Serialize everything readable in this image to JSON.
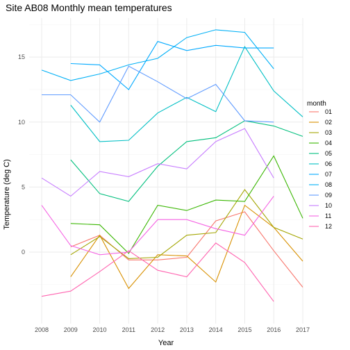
{
  "chart_data": {
    "type": "line",
    "title": "Site AB08 Monthly mean temperatures",
    "xlabel": "Year",
    "ylabel": "Temperature (deg C)",
    "xlim": [
      2008,
      2017
    ],
    "ylim": [
      -5.5,
      18
    ],
    "x_ticks": [
      2008,
      2009,
      2010,
      2011,
      2012,
      2013,
      2014,
      2015,
      2016,
      2017
    ],
    "y_ticks": [
      0,
      5,
      10,
      15
    ],
    "grid": true,
    "legend": {
      "title": "month",
      "position": "right"
    },
    "series": [
      {
        "name": "01",
        "color": "#F8766D",
        "x": [
          2009,
          2010,
          2011,
          2012,
          2013,
          2014,
          2015,
          2016,
          2017
        ],
        "y": [
          0.4,
          1.3,
          -0.6,
          -0.6,
          -0.4,
          2.4,
          3.1,
          0.1,
          -2.7
        ]
      },
      {
        "name": "02",
        "color": "#D89000",
        "x": [
          2009,
          2010,
          2011,
          2012,
          2013,
          2014,
          2015,
          2016,
          2017
        ],
        "y": [
          -1.9,
          1.3,
          -2.8,
          -0.2,
          -0.3,
          -2.3,
          3.6,
          1.9,
          -0.7
        ]
      },
      {
        "name": "03",
        "color": "#A3A500",
        "x": [
          2009,
          2010,
          2011,
          2012,
          2013,
          2014,
          2015,
          2016,
          2017
        ],
        "y": [
          -0.2,
          1.2,
          -0.5,
          -0.4,
          1.3,
          1.5,
          4.8,
          1.9,
          1.0
        ]
      },
      {
        "name": "04",
        "color": "#39B600",
        "x": [
          2009,
          2010,
          2011,
          2012,
          2013,
          2014,
          2015,
          2016,
          2017
        ],
        "y": [
          2.2,
          2.1,
          -0.1,
          3.6,
          3.2,
          4.0,
          3.9,
          7.4,
          2.6
        ]
      },
      {
        "name": "05",
        "color": "#00BF7D",
        "x": [
          2009,
          2010,
          2011,
          2012,
          2013,
          2014,
          2015,
          2016,
          2017
        ],
        "y": [
          7.1,
          4.5,
          3.9,
          6.6,
          8.5,
          8.8,
          10.1,
          9.7,
          8.9
        ]
      },
      {
        "name": "06",
        "color": "#00BFC4",
        "x": [
          2009,
          2010,
          2011,
          2012,
          2013,
          2014,
          2015,
          2016,
          2017
        ],
        "y": [
          11.3,
          8.5,
          8.6,
          10.7,
          11.9,
          10.8,
          15.8,
          12.4,
          10.4
        ]
      },
      {
        "name": "07",
        "color": "#00A9FF",
        "x": [
          2009,
          2010,
          2011,
          2012,
          2013,
          2014,
          2015,
          2016
        ],
        "y": [
          14.5,
          14.4,
          12.5,
          16.2,
          15.5,
          15.9,
          15.7,
          15.7
        ]
      },
      {
        "name": "08",
        "color": "#00B0F6",
        "x": [
          2008,
          2009,
          2010,
          2011,
          2012,
          2013,
          2014,
          2015,
          2016
        ],
        "y": [
          14.0,
          13.2,
          13.7,
          14.4,
          14.9,
          16.5,
          17.1,
          16.9,
          14.1
        ]
      },
      {
        "name": "09",
        "color": "#619CFF",
        "x": [
          2008,
          2009,
          2010,
          2011,
          2012,
          2013,
          2014,
          2015,
          2016
        ],
        "y": [
          12.1,
          12.1,
          10.0,
          14.3,
          13.1,
          11.8,
          12.9,
          10.1,
          10.0
        ]
      },
      {
        "name": "10",
        "color": "#C77CFF",
        "x": [
          2008,
          2009,
          2010,
          2011,
          2012,
          2013,
          2014,
          2015,
          2016
        ],
        "y": [
          5.7,
          4.3,
          6.2,
          5.8,
          6.8,
          6.4,
          8.5,
          9.5,
          5.7
        ]
      },
      {
        "name": "11",
        "color": "#F564E3",
        "x": [
          2008,
          2009,
          2010,
          2011,
          2012,
          2013,
          2014,
          2015,
          2016
        ],
        "y": [
          3.6,
          0.5,
          -0.2,
          0.0,
          2.5,
          2.5,
          1.8,
          1.3,
          4.3
        ]
      },
      {
        "name": "12",
        "color": "#FF64B0",
        "x": [
          2008,
          2009,
          2010,
          2011,
          2012,
          2013,
          2014,
          2015,
          2016
        ],
        "y": [
          -3.4,
          -3.0,
          -1.5,
          0.1,
          -1.4,
          -1.9,
          0.7,
          -0.8,
          -3.8
        ]
      }
    ]
  }
}
